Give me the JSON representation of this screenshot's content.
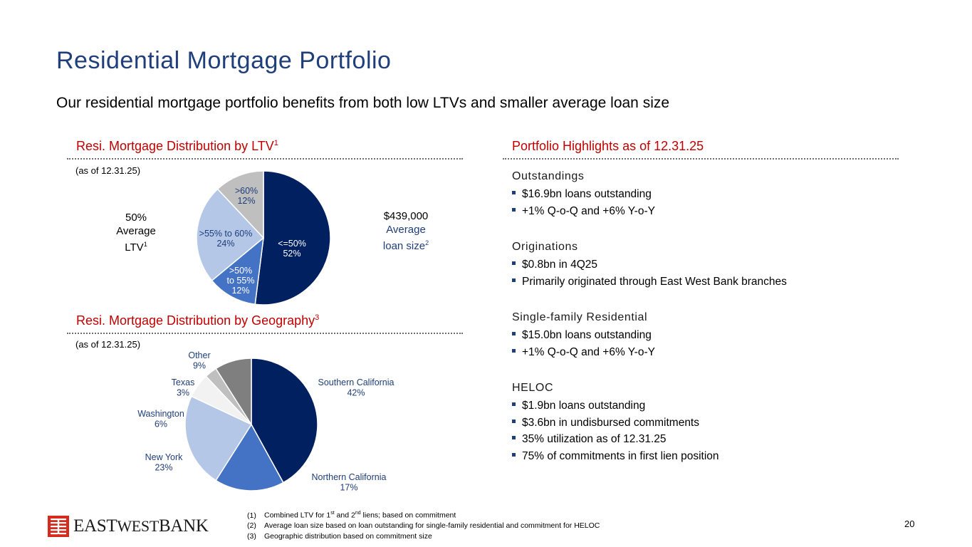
{
  "title": "Residential Mortgage Portfolio",
  "subtitle": "Our residential mortgage portfolio benefits from both low LTVs and smaller average loan size",
  "ltv_section": {
    "heading": "Resi. Mortgage Distribution by LTV",
    "heading_sup": "1",
    "as_of": "(as of 12.31.25)",
    "left_callout": {
      "value": "50%",
      "line2": "Average",
      "line3": "LTV",
      "sup": "1"
    },
    "right_callout": {
      "value": "$439,000",
      "line2": "Average",
      "line3": "loan size",
      "sup": "2"
    }
  },
  "geo_section": {
    "heading": "Resi. Mortgage Distribution by Geography",
    "heading_sup": "3",
    "as_of": "(as of 12.31.25)"
  },
  "chart_data": [
    {
      "type": "pie",
      "title": "Resi. Mortgage Distribution by LTV",
      "labels": [
        "<=50%",
        ">50% to 55%",
        ">55% to 60%",
        ">60%"
      ],
      "values": [
        52,
        12,
        24,
        12
      ],
      "value_labels": [
        "52%",
        "12%",
        "24%",
        "12%"
      ],
      "label_lines": [
        [
          "<=50%",
          "52%"
        ],
        [
          ">50%",
          "to 55%",
          "12%"
        ],
        [
          ">55% to 60%",
          "24%"
        ],
        [
          ">60%",
          "12%"
        ]
      ],
      "colors": [
        "#002060",
        "#4472c4",
        "#b4c7e7",
        "#bfbfbf"
      ],
      "label_colors": [
        "#ffffff",
        "#ffffff",
        "#1f3e7a",
        "#1f3e7a"
      ]
    },
    {
      "type": "pie",
      "title": "Resi. Mortgage Distribution by Geography",
      "labels": [
        "Southern California",
        "Northern California",
        "New York",
        "Washington",
        "Texas",
        "Other"
      ],
      "values": [
        42,
        17,
        23,
        6,
        3,
        9
      ],
      "value_labels": [
        "42%",
        "17%",
        "23%",
        "6%",
        "3%",
        "9%"
      ],
      "colors": [
        "#002060",
        "#4472c4",
        "#b4c7e7",
        "#f2f2f2",
        "#bfbfbf",
        "#7f7f7f"
      ]
    }
  ],
  "highlights": {
    "heading": "Portfolio Highlights as of 12.31.25",
    "groups": [
      {
        "heading": "Outstandings",
        "items": [
          "$16.9bn loans outstanding",
          "+1% Q-o-Q and +6% Y-o-Y"
        ]
      },
      {
        "heading": "Originations",
        "items": [
          "$0.8bn in 4Q25",
          "Primarily originated through East West Bank branches"
        ]
      },
      {
        "heading": "Single-family Residential",
        "items": [
          "$15.0bn loans outstanding",
          "+1% Q-o-Q and +6% Y-o-Y"
        ]
      },
      {
        "heading": "HELOC",
        "items": [
          "$1.9bn loans outstanding",
          "$3.6bn in undisbursed commitments",
          "35% utilization as of 12.31.25",
          "75% of commitments in first lien position"
        ]
      }
    ]
  },
  "footnotes": [
    {
      "num": "(1)",
      "pre": "Combined LTV for 1",
      "sup1": "st",
      "mid": " and 2",
      "sup2": "nd",
      "post": " liens; based on commitment"
    },
    {
      "num": "(2)",
      "text": "Average loan size based on loan outstanding for single-family residential and commitment for HELOC"
    },
    {
      "num": "(3)",
      "text": "Geographic distribution based on commitment size"
    }
  ],
  "page_number": "20",
  "logo": {
    "text": "EASTWESTBANK",
    "icon": "east-west-bank-logo-icon",
    "color": "#d52b1e"
  }
}
